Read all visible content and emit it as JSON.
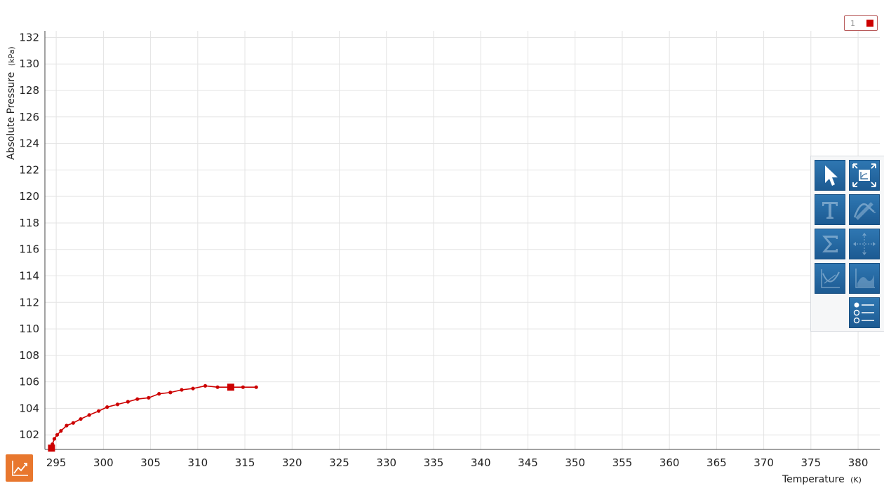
{
  "legend": {
    "label": "1",
    "color": "#cc0000"
  },
  "toolbar": {
    "buttons": [
      {
        "name": "select-tool-button",
        "icon": "arrow-cursor-icon",
        "dim": false
      },
      {
        "name": "autoscale-button",
        "icon": "autoscale-icon",
        "dim": false
      },
      {
        "name": "annotation-button",
        "icon": "text-t-icon",
        "dim": true
      },
      {
        "name": "curve-fit-button",
        "icon": "curve-fit-icon",
        "dim": true
      },
      {
        "name": "statistics-button",
        "icon": "sigma-icon",
        "dim": true
      },
      {
        "name": "examine-button",
        "icon": "crosshair-icon",
        "dim": true
      },
      {
        "name": "tangent-button",
        "icon": "tangent-icon",
        "dim": true
      },
      {
        "name": "integral-button",
        "icon": "integral-area-icon",
        "dim": true
      },
      {
        "name": "legend-options-button",
        "icon": "legend-options-icon",
        "dim": false
      }
    ]
  },
  "chart_data": {
    "type": "line",
    "xlabel": "Temperature",
    "xunit": "(K)",
    "ylabel": "Absolute Pressure",
    "yunit": "(kPa)",
    "xlim": [
      293.8,
      382.3
    ],
    "ylim": [
      100.9,
      132.5
    ],
    "x_ticks": [
      295,
      300,
      305,
      310,
      315,
      320,
      325,
      330,
      335,
      340,
      345,
      350,
      355,
      360,
      365,
      370,
      375,
      380
    ],
    "y_ticks": [
      102,
      104,
      106,
      108,
      110,
      112,
      114,
      116,
      118,
      120,
      122,
      124,
      126,
      128,
      130,
      132
    ],
    "grid": true,
    "series": [
      {
        "name": "1",
        "color": "#cc0000",
        "x": [
          294.5,
          294.6,
          294.8,
          295.1,
          295.5,
          296.1,
          296.8,
          297.6,
          298.5,
          299.5,
          300.4,
          301.5,
          302.6,
          303.6,
          304.8,
          305.9,
          307.1,
          308.3,
          309.5,
          310.8,
          312.1,
          313.5,
          314.8,
          316.2
        ],
        "y": [
          101.0,
          101.3,
          101.7,
          102.0,
          102.3,
          102.7,
          102.9,
          103.2,
          103.5,
          103.8,
          104.1,
          104.3,
          104.5,
          104.7,
          104.8,
          105.1,
          105.2,
          105.4,
          105.5,
          105.7,
          105.6,
          105.6,
          105.6,
          105.6
        ],
        "markers": [
          {
            "x": 294.5,
            "y": 101.0
          },
          {
            "x": 313.5,
            "y": 105.6
          }
        ]
      }
    ]
  }
}
